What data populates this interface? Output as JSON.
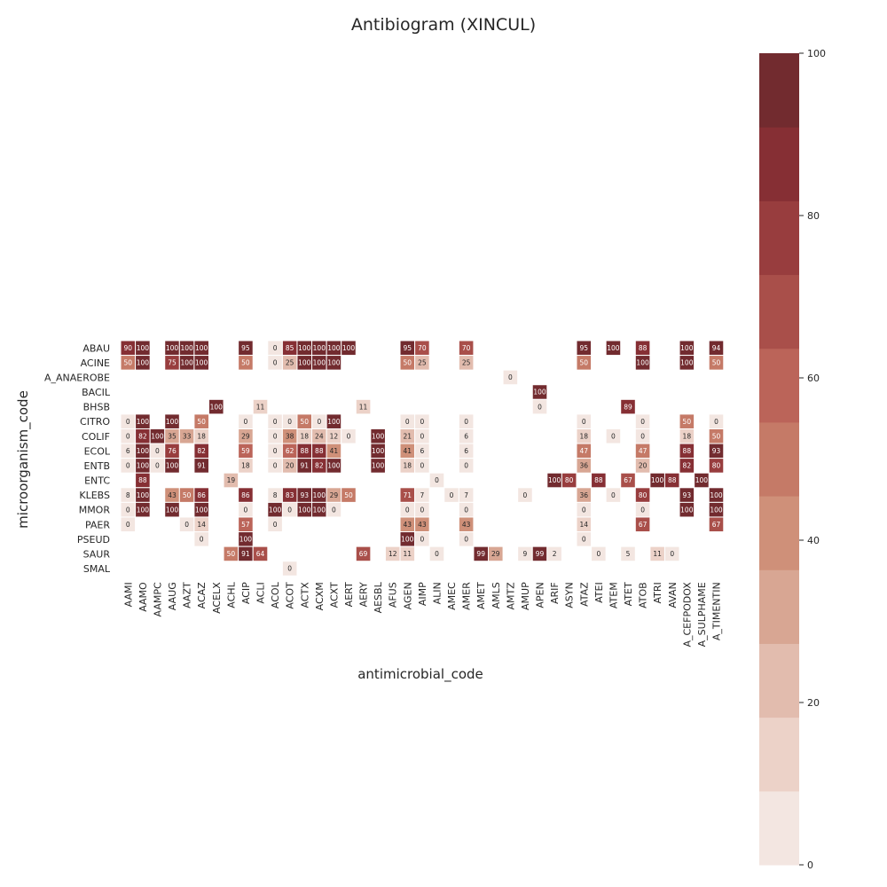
{
  "chart_data": {
    "type": "heatmap",
    "title": "Antibiogram (XINCUL)",
    "xlabel": "antimicrobial_code",
    "ylabel": "microorganism_code",
    "x_categories": [
      "AAMI",
      "AAMO",
      "AAMPC",
      "AAUG",
      "AAZT",
      "ACAZ",
      "ACELX",
      "ACHL",
      "ACIP",
      "ACLI",
      "ACOL",
      "ACOT",
      "ACTX",
      "ACXM",
      "ACXT",
      "AERT",
      "AERY",
      "AESBL",
      "AFUS",
      "AGEN",
      "AIMP",
      "ALIN",
      "AMEC",
      "AMER",
      "AMET",
      "AMLS",
      "AMTZ",
      "AMUP",
      "APEN",
      "ARIF",
      "ASYN",
      "ATAZ",
      "ATEI",
      "ATEM",
      "ATET",
      "ATOB",
      "ATRI",
      "AVAN",
      "A_CEFPODOX",
      "A_SULPHAME",
      "A_TIMENTIN"
    ],
    "y_categories": [
      "ABAU",
      "ACINE",
      "A_ANAEROBE",
      "BACIL",
      "BHSB",
      "CITRO",
      "COLIF",
      "ECOL",
      "ENTB",
      "ENTC",
      "KLEBS",
      "MMOR",
      "PAER",
      "PSEUD",
      "SAUR",
      "SMAL"
    ],
    "values": [
      [
        90,
        100,
        null,
        100,
        100,
        100,
        null,
        null,
        95,
        null,
        0,
        85,
        100,
        100,
        100,
        100,
        null,
        null,
        null,
        95,
        70,
        null,
        null,
        70,
        null,
        null,
        null,
        null,
        null,
        null,
        null,
        95,
        null,
        100,
        null,
        88,
        null,
        null,
        100,
        null,
        94
      ],
      [
        50,
        100,
        null,
        75,
        100,
        100,
        null,
        null,
        50,
        null,
        0,
        25,
        100,
        100,
        100,
        null,
        null,
        null,
        null,
        50,
        25,
        null,
        null,
        25,
        null,
        null,
        null,
        null,
        null,
        null,
        null,
        50,
        null,
        null,
        null,
        100,
        null,
        null,
        100,
        null,
        50
      ],
      [
        null,
        null,
        null,
        null,
        null,
        null,
        null,
        null,
        null,
        null,
        null,
        null,
        null,
        null,
        null,
        null,
        null,
        null,
        null,
        null,
        null,
        null,
        null,
        null,
        null,
        null,
        0,
        null,
        null,
        null,
        null,
        null,
        null,
        null,
        null,
        null,
        null,
        null,
        null,
        null,
        null
      ],
      [
        null,
        null,
        null,
        null,
        null,
        null,
        null,
        null,
        null,
        null,
        null,
        null,
        null,
        null,
        null,
        null,
        null,
        null,
        null,
        null,
        null,
        null,
        null,
        null,
        null,
        null,
        null,
        null,
        100,
        null,
        null,
        null,
        null,
        null,
        null,
        null,
        null,
        null,
        null,
        null,
        null
      ],
      [
        null,
        null,
        null,
        null,
        null,
        null,
        100,
        null,
        null,
        11,
        null,
        null,
        null,
        null,
        null,
        null,
        11,
        null,
        null,
        null,
        null,
        null,
        null,
        null,
        null,
        null,
        null,
        null,
        0,
        null,
        null,
        null,
        null,
        null,
        89,
        null,
        null,
        null,
        null,
        null,
        null
      ],
      [
        0,
        100,
        null,
        100,
        null,
        50,
        null,
        null,
        0,
        null,
        0,
        0,
        50,
        0,
        100,
        null,
        null,
        null,
        null,
        0,
        0,
        null,
        null,
        0,
        null,
        null,
        null,
        null,
        null,
        null,
        null,
        0,
        null,
        null,
        null,
        0,
        null,
        null,
        50,
        null,
        0
      ],
      [
        0,
        82,
        100,
        35,
        33,
        18,
        null,
        null,
        29,
        null,
        0,
        38,
        18,
        24,
        12,
        0,
        null,
        100,
        null,
        21,
        0,
        null,
        null,
        6,
        null,
        null,
        null,
        null,
        null,
        null,
        null,
        18,
        null,
        0,
        null,
        0,
        null,
        null,
        18,
        null,
        50
      ],
      [
        6,
        100,
        0,
        76,
        null,
        82,
        null,
        null,
        59,
        null,
        0,
        62,
        88,
        88,
        41,
        null,
        null,
        100,
        null,
        41,
        6,
        null,
        null,
        6,
        null,
        null,
        null,
        null,
        null,
        null,
        null,
        47,
        null,
        null,
        null,
        47,
        null,
        null,
        88,
        null,
        93
      ],
      [
        0,
        100,
        0,
        100,
        null,
        91,
        null,
        null,
        18,
        null,
        0,
        20,
        91,
        82,
        100,
        null,
        null,
        100,
        null,
        18,
        0,
        null,
        null,
        0,
        null,
        null,
        null,
        null,
        null,
        null,
        null,
        36,
        null,
        null,
        null,
        20,
        null,
        null,
        82,
        null,
        80
      ],
      [
        null,
        88,
        null,
        null,
        null,
        null,
        null,
        19,
        null,
        null,
        null,
        null,
        null,
        null,
        null,
        null,
        null,
        null,
        null,
        null,
        null,
        0,
        null,
        null,
        null,
        null,
        null,
        null,
        null,
        100,
        80,
        null,
        88,
        null,
        67,
        null,
        100,
        88,
        null,
        100,
        null
      ],
      [
        8,
        100,
        null,
        43,
        50,
        86,
        null,
        null,
        86,
        null,
        8,
        83,
        93,
        100,
        29,
        50,
        null,
        null,
        null,
        71,
        7,
        null,
        0,
        7,
        null,
        null,
        null,
        0,
        null,
        null,
        null,
        36,
        null,
        0,
        null,
        80,
        null,
        null,
        93,
        null,
        100
      ],
      [
        0,
        100,
        null,
        100,
        null,
        100,
        null,
        null,
        0,
        null,
        100,
        0,
        100,
        100,
        0,
        null,
        null,
        null,
        null,
        0,
        0,
        null,
        null,
        0,
        null,
        null,
        null,
        null,
        null,
        null,
        null,
        0,
        null,
        null,
        null,
        0,
        null,
        null,
        100,
        null,
        100
      ],
      [
        0,
        null,
        null,
        null,
        0,
        14,
        null,
        null,
        57,
        null,
        0,
        null,
        null,
        null,
        null,
        null,
        null,
        null,
        null,
        43,
        43,
        null,
        null,
        43,
        null,
        null,
        null,
        null,
        null,
        null,
        null,
        14,
        null,
        null,
        null,
        67,
        null,
        null,
        null,
        null,
        67
      ],
      [
        null,
        null,
        null,
        null,
        null,
        0,
        null,
        null,
        100,
        null,
        null,
        null,
        null,
        null,
        null,
        null,
        null,
        null,
        null,
        100,
        0,
        null,
        null,
        0,
        null,
        null,
        null,
        null,
        null,
        null,
        null,
        0,
        null,
        null,
        null,
        null,
        null,
        null,
        null,
        null,
        null
      ],
      [
        null,
        null,
        null,
        null,
        null,
        null,
        null,
        50,
        91,
        64,
        null,
        null,
        null,
        null,
        null,
        null,
        69,
        null,
        12,
        11,
        null,
        0,
        null,
        null,
        99,
        29,
        null,
        9,
        99,
        2,
        null,
        null,
        0,
        null,
        5,
        null,
        11,
        0,
        null,
        null,
        null
      ],
      [
        null,
        null,
        null,
        null,
        null,
        null,
        null,
        null,
        null,
        null,
        null,
        0,
        null,
        null,
        null,
        null,
        null,
        null,
        null,
        null,
        null,
        null,
        null,
        null,
        null,
        null,
        null,
        null,
        null,
        null,
        null,
        null,
        null,
        null,
        null,
        null,
        null,
        null,
        null,
        null,
        null
      ]
    ],
    "vmin": 0,
    "vmax": 100,
    "color_bins": 11,
    "palette": [
      "#f3e6e1",
      "#ecd2c8",
      "#e2bcae",
      "#d8a693",
      "#cf9079",
      "#c57a67",
      "#bb6459",
      "#a94f4a",
      "#983d3e",
      "#862f34",
      "#722b2f"
    ],
    "annotation_text_dark": "#262626",
    "annotation_text_light": "#ffffff",
    "colorbar_ticks": [
      0,
      20,
      40,
      60,
      80,
      100
    ]
  }
}
